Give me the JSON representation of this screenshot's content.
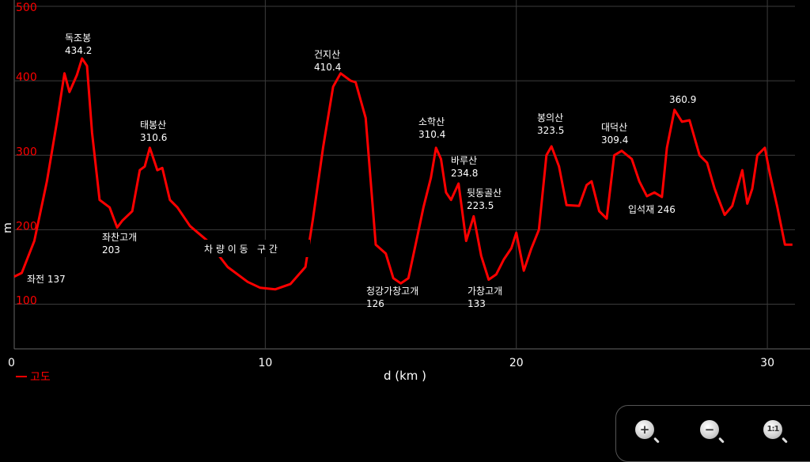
{
  "chart_data": {
    "type": "line",
    "xlabel": "d (km )",
    "ylabel": "m",
    "xlim": [
      0,
      31.1
    ],
    "ylim": [
      40,
      500
    ],
    "x_ticks": [
      "0",
      "10",
      "20",
      "30"
    ],
    "x_tick_values": [
      0,
      10,
      20,
      30
    ],
    "y_ticks": [
      "100",
      "200",
      "300",
      "400",
      "500"
    ],
    "y_tick_values": [
      100,
      200,
      300,
      400,
      500
    ],
    "grid": true,
    "legend": "bottom-left",
    "series": [
      {
        "name": "고도",
        "color": "#ff0000",
        "x": [
          0,
          0.3,
          0.8,
          1.3,
          1.7,
          2.0,
          2.2,
          2.5,
          2.7,
          2.9,
          3.1,
          3.4,
          3.8,
          4.1,
          4.3,
          4.7,
          5.0,
          5.2,
          5.4,
          5.7,
          5.9,
          6.2,
          6.5,
          7.0,
          7.7,
          8.5,
          9.3,
          9.8,
          10.4,
          11.0,
          11.6,
          11.9,
          12.3,
          12.7,
          13.0,
          13.4,
          13.6,
          14.0,
          14.4,
          14.8,
          15.1,
          15.4,
          15.7,
          16.0,
          16.3,
          16.6,
          16.8,
          17.0,
          17.2,
          17.4,
          17.7,
          18.0,
          18.3,
          18.6,
          18.9,
          19.2,
          19.5,
          19.8,
          20.0,
          20.3,
          20.6,
          20.9,
          21.2,
          21.4,
          21.7,
          22.0,
          22.5,
          22.8,
          23.0,
          23.3,
          23.6,
          23.9,
          24.2,
          24.6,
          24.9,
          25.2,
          25.5,
          25.8,
          26.0,
          26.3,
          26.6,
          26.9,
          27.3,
          27.6,
          27.9,
          28.3,
          28.6,
          29.0,
          29.2,
          29.4,
          29.6,
          29.9,
          30.1,
          30.4,
          30.7,
          31.0
        ],
        "y": [
          137,
          142,
          185,
          265,
          345,
          410,
          385,
          408,
          430,
          420,
          330,
          240,
          230,
          203,
          212,
          225,
          280,
          285,
          310,
          280,
          283,
          240,
          230,
          205,
          185,
          150,
          130,
          122,
          120,
          127,
          150,
          215,
          310,
          392,
          410,
          400,
          398,
          350,
          180,
          168,
          135,
          128,
          135,
          182,
          230,
          270,
          310,
          295,
          250,
          240,
          262,
          185,
          218,
          165,
          133,
          140,
          160,
          175,
          196,
          145,
          175,
          200,
          300,
          312,
          285,
          233,
          232,
          260,
          265,
          225,
          215,
          300,
          306,
          295,
          265,
          245,
          250,
          244,
          310,
          361,
          345,
          347,
          300,
          290,
          255,
          220,
          232,
          280,
          235,
          255,
          300,
          310,
          275,
          230,
          180,
          180
        ]
      }
    ],
    "peak_annotations": [
      {
        "name": "독조봉",
        "elev": "434.2"
      },
      {
        "name": "태봉산",
        "elev": "310.6"
      },
      {
        "name": "건지산",
        "elev": "410.4"
      },
      {
        "name": "소학산",
        "elev": "310.4"
      },
      {
        "name": "바루산",
        "elev": "234.8"
      },
      {
        "name": "뒷동골산",
        "elev": "223.5"
      },
      {
        "name": "봉의산",
        "elev": "323.5"
      },
      {
        "name": "대덕산",
        "elev": "309.4"
      },
      {
        "name": "",
        "elev": "360.9"
      },
      {
        "name": "좌찬고개",
        "elev": "203"
      },
      {
        "name": "청강가창고개",
        "elev": "126"
      },
      {
        "name": "가창고개",
        "elev": "133"
      }
    ],
    "inline_annotations": [
      {
        "text": "좌전 137"
      },
      {
        "text": "입석재 246"
      },
      {
        "text": "차 량 이 동   구 간"
      }
    ]
  },
  "zoom_controls": {
    "zoom_in": "+",
    "zoom_out": "−",
    "reset": "1:1"
  }
}
